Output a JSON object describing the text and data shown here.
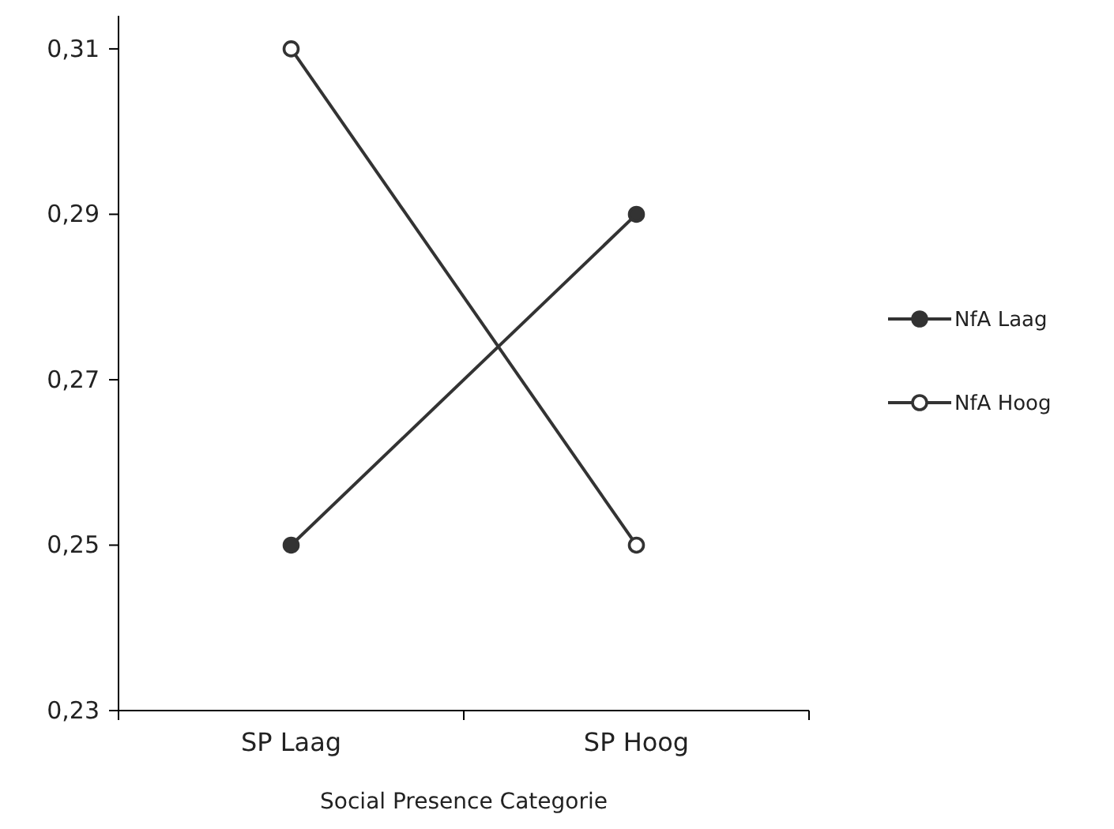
{
  "chart_data": {
    "type": "line",
    "xlabel": "Social Presence Categorie",
    "categories": [
      "SP Laag",
      "SP Hoog"
    ],
    "series": [
      {
        "name": "NfA Laag",
        "color": "#333333",
        "values": [
          0.25,
          0.29
        ]
      },
      {
        "name": "NfA Hoog",
        "color": "#333333",
        "values": [
          0.31,
          0.25
        ]
      }
    ],
    "ylim": [
      0.23,
      0.314
    ],
    "yticks": [
      {
        "value": 0.23,
        "label": "0,23"
      },
      {
        "value": 0.25,
        "label": "0,25"
      },
      {
        "value": 0.27,
        "label": "0,27"
      },
      {
        "value": 0.29,
        "label": "0,29"
      },
      {
        "value": 0.31,
        "label": "0,31"
      }
    ],
    "grid": false,
    "legend": "right",
    "marker": "circle",
    "line_style": "solid"
  }
}
